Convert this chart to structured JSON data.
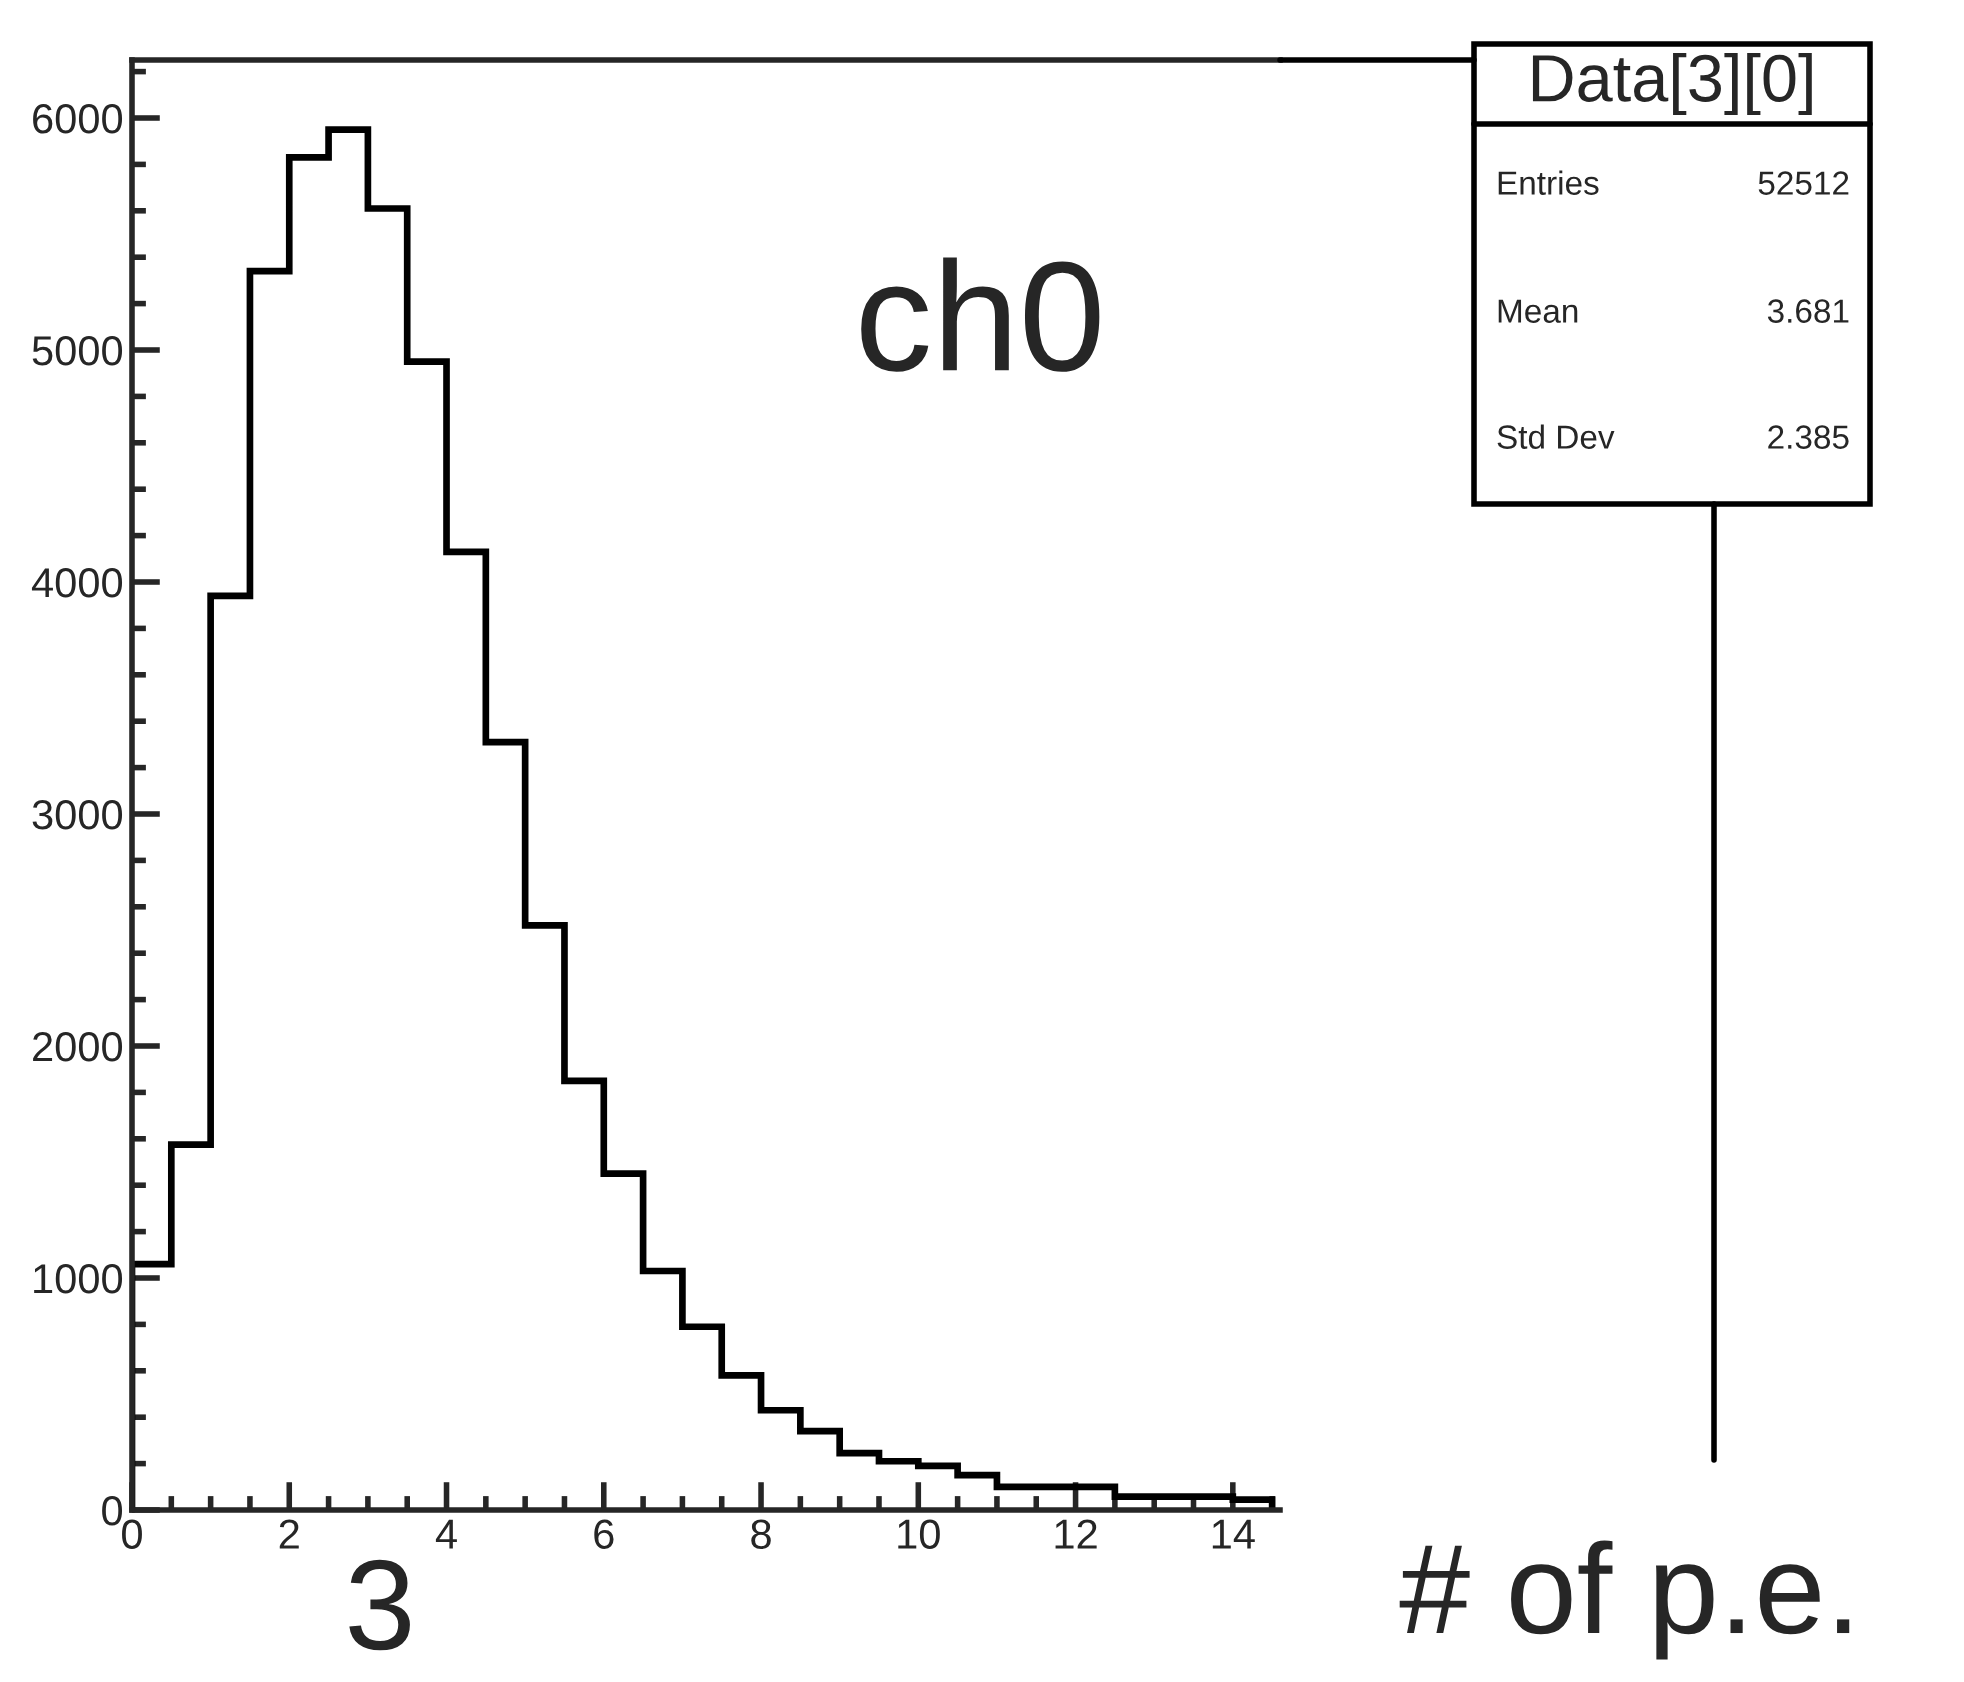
{
  "chart_data": {
    "type": "histogram",
    "bins": [
      0,
      0.5,
      1,
      1.5,
      2,
      2.5,
      3,
      3.5,
      4,
      4.5,
      5,
      5.5,
      6,
      6.5,
      7,
      7.5,
      8,
      8.5,
      9,
      9.5,
      10,
      10.5,
      11,
      11.5,
      12,
      12.5,
      13,
      13.5,
      14,
      14.5
    ],
    "values": [
      1060,
      1575,
      3940,
      5340,
      5830,
      5950,
      5610,
      4950,
      4130,
      3310,
      2520,
      1850,
      1450,
      1030,
      790,
      580,
      430,
      340,
      245,
      210,
      190,
      150,
      100,
      100,
      100,
      58,
      58,
      58,
      45
    ],
    "color": "#000000",
    "xlabel": "# of p.e.",
    "xlim": [
      0,
      14.6
    ],
    "ylim": [
      0,
      6250
    ],
    "xticks": [
      0,
      2,
      4,
      6,
      8,
      10,
      12,
      14
    ],
    "yticks": [
      0,
      1000,
      2000,
      3000,
      4000,
      5000,
      6000
    ],
    "grid": false,
    "legend": false,
    "annotations": [
      "ch0",
      "3",
      "Data[3][0]",
      "Entries",
      "52512",
      "Mean",
      "3.681",
      "Std Dev",
      "2.385"
    ]
  }
}
